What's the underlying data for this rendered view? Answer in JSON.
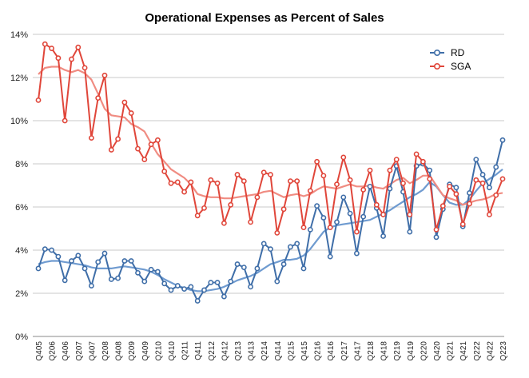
{
  "chart_data": {
    "type": "line",
    "title": "Operational Expenses as Percent of Sales",
    "xlabel": "",
    "ylabel": "",
    "ylim": [
      0,
      14
    ],
    "y_ticks": [
      "0%",
      "2%",
      "4%",
      "6%",
      "8%",
      "10%",
      "12%",
      "14%"
    ],
    "y_tick_values": [
      0,
      2,
      4,
      6,
      8,
      10,
      12,
      14
    ],
    "grid": true,
    "legend_position": "top-right",
    "categories": [
      "Q405",
      "Q106",
      "Q206",
      "Q306",
      "Q406",
      "Q107",
      "Q207",
      "Q307",
      "Q407",
      "Q108",
      "Q208",
      "Q308",
      "Q408",
      "Q109",
      "Q209",
      "Q309",
      "Q409",
      "Q110",
      "Q210",
      "Q310",
      "Q410",
      "Q111",
      "Q211",
      "Q311",
      "Q411",
      "Q112",
      "Q212",
      "Q312",
      "Q412",
      "Q113",
      "Q213",
      "Q313",
      "Q413",
      "Q114",
      "Q214",
      "Q314",
      "Q414",
      "Q115",
      "Q215",
      "Q315",
      "Q415",
      "Q116",
      "Q216",
      "Q316",
      "Q416",
      "Q117",
      "Q217",
      "Q317",
      "Q417",
      "Q118",
      "Q218",
      "Q318",
      "Q418",
      "Q119",
      "Q219",
      "Q319",
      "Q419",
      "Q120",
      "Q220",
      "Q320",
      "Q420",
      "Q121",
      "Q221",
      "Q321",
      "Q421",
      "Q122",
      "Q222",
      "Q322",
      "Q422",
      "Q123",
      "Q223"
    ],
    "tick_labels": [
      "Q405",
      "Q206",
      "Q406",
      "Q207",
      "Q407",
      "Q208",
      "Q408",
      "Q209",
      "Q409",
      "Q210",
      "Q410",
      "Q211",
      "Q411",
      "Q212",
      "Q412",
      "Q213",
      "Q413",
      "Q214",
      "Q414",
      "Q215",
      "Q415",
      "Q216",
      "Q416",
      "Q217",
      "Q417",
      "Q218",
      "Q418",
      "Q219",
      "Q419",
      "Q220",
      "Q420",
      "Q221",
      "Q421",
      "Q222",
      "Q422",
      "Q223"
    ],
    "series": [
      {
        "name": "RD",
        "color": "#3f6ea8",
        "trend_color": "#6f9bd0",
        "values": [
          3.15,
          4.05,
          4.0,
          3.7,
          2.6,
          3.5,
          3.75,
          3.15,
          2.35,
          3.45,
          3.85,
          2.65,
          2.7,
          3.5,
          3.5,
          2.95,
          2.55,
          3.1,
          3.0,
          2.45,
          2.15,
          2.35,
          2.2,
          2.3,
          1.65,
          2.15,
          2.5,
          2.5,
          1.85,
          2.55,
          3.35,
          3.2,
          2.3,
          3.15,
          4.3,
          4.05,
          2.55,
          3.35,
          4.15,
          4.3,
          3.15,
          4.95,
          6.05,
          5.5,
          3.7,
          5.3,
          6.45,
          5.7,
          3.85,
          5.55,
          6.95,
          5.95,
          4.65,
          6.85,
          7.9,
          6.7,
          4.85,
          7.9,
          8.0,
          7.7,
          4.6,
          5.9,
          7.05,
          6.9,
          5.1,
          6.65,
          8.2,
          7.5,
          6.9,
          7.85,
          9.1
        ],
        "trend": [
          3.35,
          3.45,
          3.5,
          3.5,
          3.45,
          3.4,
          3.35,
          3.3,
          3.2,
          3.15,
          3.15,
          3.15,
          3.2,
          3.25,
          3.2,
          3.15,
          3.1,
          3.0,
          2.85,
          2.65,
          2.5,
          2.35,
          2.25,
          2.15,
          2.1,
          2.1,
          2.15,
          2.2,
          2.3,
          2.45,
          2.6,
          2.7,
          2.8,
          2.95,
          3.15,
          3.35,
          3.45,
          3.55,
          3.55,
          3.6,
          3.75,
          4.05,
          4.45,
          4.85,
          5.05,
          5.15,
          5.2,
          5.25,
          5.3,
          5.35,
          5.4,
          5.55,
          5.7,
          5.85,
          6.05,
          6.25,
          6.45,
          6.6,
          6.8,
          7.15,
          6.95,
          6.55,
          6.2,
          6.1,
          6.1,
          6.35,
          6.75,
          7.1,
          7.3,
          7.5,
          7.75
        ]
      },
      {
        "name": "SGA",
        "color": "#e0463a",
        "trend_color": "#f08c82",
        "values": [
          10.95,
          13.55,
          13.35,
          12.9,
          10.0,
          12.85,
          13.4,
          12.45,
          9.2,
          11.05,
          12.1,
          8.65,
          9.15,
          10.85,
          10.35,
          8.7,
          8.2,
          8.9,
          9.1,
          7.65,
          7.1,
          7.15,
          6.7,
          7.15,
          5.6,
          5.95,
          7.25,
          7.1,
          5.25,
          6.1,
          7.5,
          7.2,
          5.3,
          6.45,
          7.6,
          7.5,
          4.8,
          5.9,
          7.2,
          7.2,
          5.05,
          6.75,
          8.1,
          7.45,
          5.05,
          7.05,
          8.3,
          7.25,
          4.85,
          6.8,
          7.7,
          6.1,
          5.65,
          7.7,
          8.2,
          7.1,
          5.65,
          8.45,
          8.1,
          7.3,
          4.95,
          6.05,
          6.95,
          6.6,
          5.2,
          6.15,
          7.25,
          7.1,
          5.65,
          6.55,
          7.3
        ],
        "trend": [
          12.15,
          12.45,
          12.5,
          12.5,
          12.35,
          12.25,
          12.35,
          12.2,
          11.9,
          11.25,
          10.55,
          10.25,
          10.2,
          10.15,
          9.85,
          9.7,
          9.5,
          8.95,
          8.45,
          8.1,
          7.75,
          7.55,
          7.35,
          7.05,
          6.6,
          6.5,
          6.45,
          6.45,
          6.4,
          6.4,
          6.45,
          6.5,
          6.55,
          6.6,
          6.7,
          6.75,
          6.6,
          6.45,
          6.55,
          6.6,
          6.5,
          6.6,
          6.8,
          6.95,
          6.9,
          6.85,
          6.95,
          7.05,
          6.95,
          6.95,
          7.0,
          6.9,
          6.85,
          7.05,
          7.25,
          7.35,
          7.1,
          7.25,
          7.45,
          7.45,
          7.0,
          6.55,
          6.4,
          6.3,
          6.1,
          6.2,
          6.3,
          6.35,
          6.45,
          6.6,
          6.65
        ]
      }
    ]
  }
}
